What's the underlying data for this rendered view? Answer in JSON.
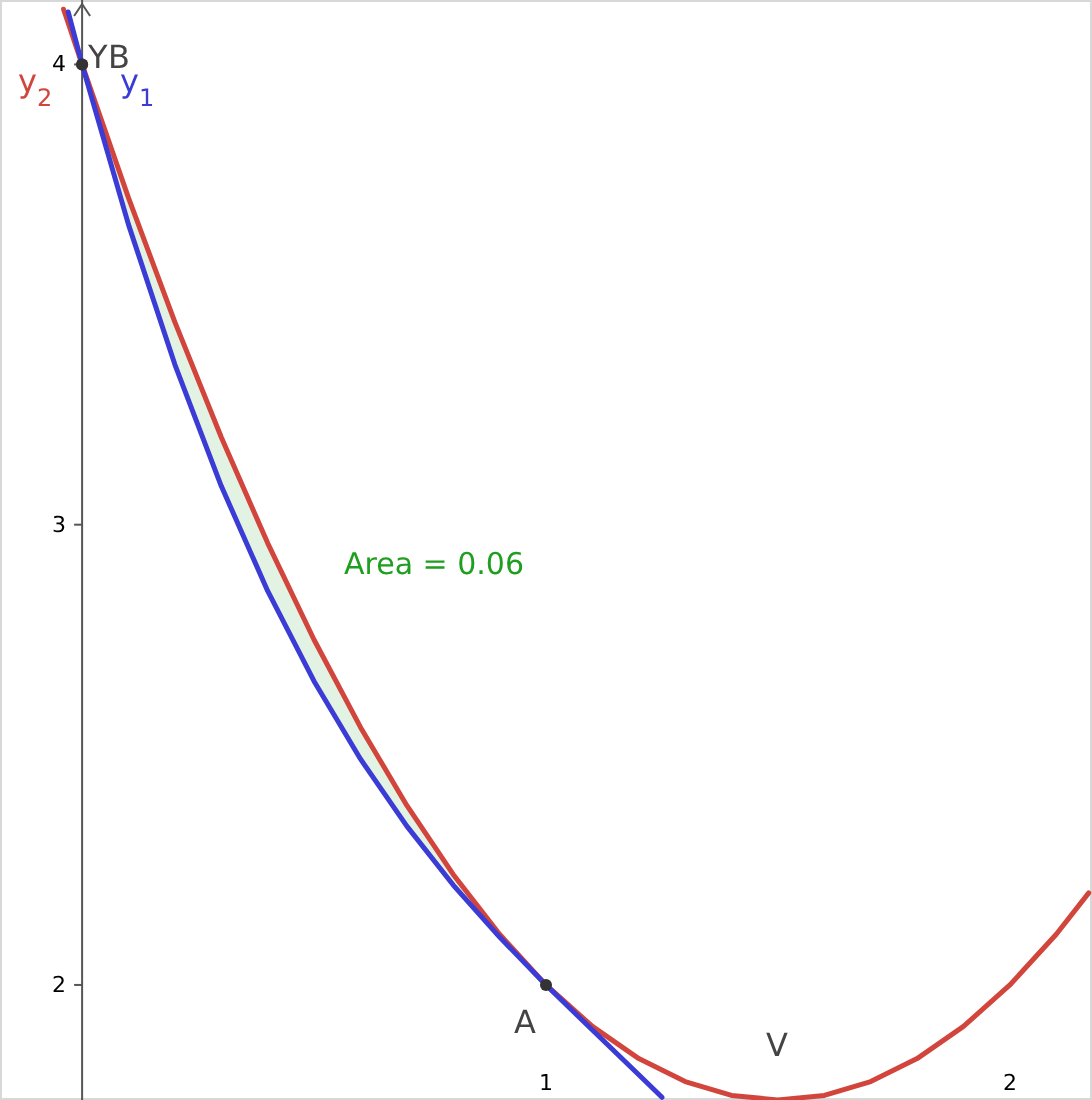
{
  "chart_data": {
    "type": "line",
    "xlim": [
      -0.177,
      2.177
    ],
    "ylim": [
      1.75,
      4.14
    ],
    "xticks": [
      1,
      2
    ],
    "yticks": [
      2,
      3,
      4
    ],
    "grid": false,
    "marker": "none",
    "line_style": "solid",
    "series": [
      {
        "name": "y$_{2}$",
        "color": "#d2453d",
        "x": [
          -0.04,
          0,
          0.1,
          0.2,
          0.3,
          0.4,
          0.5,
          0.6,
          0.7,
          0.8,
          0.9,
          1.0,
          1.1,
          1.2,
          1.3,
          1.4,
          1.5,
          1.6,
          1.7,
          1.8,
          1.9,
          2.0,
          2.1,
          2.17
        ],
        "values": [
          4.12,
          4,
          3.71,
          3.44,
          3.19,
          2.96,
          2.75,
          2.56,
          2.39,
          2.24,
          2.11,
          2,
          1.91,
          1.84,
          1.79,
          1.76,
          1.75,
          1.76,
          1.79,
          1.84,
          1.91,
          2,
          2.11,
          2.2
        ]
      },
      {
        "name": "y$_{1}$",
        "color": "#3b3bd6",
        "x": [
          -0.03,
          0,
          0.1,
          0.2,
          0.3,
          0.4,
          0.5,
          0.6,
          0.7,
          0.8,
          0.9,
          1.0,
          1.1,
          1.2,
          1.25
        ],
        "values": [
          4.114,
          4,
          3.652,
          3.348,
          3.084,
          2.856,
          2.66,
          2.491,
          2.345,
          2.217,
          2.104,
          2,
          1.902,
          1.805,
          1.756
        ],
        "lower": [
          null,
          4,
          3.652,
          3.348,
          3.084,
          2.856,
          2.66,
          2.491,
          2.345,
          2.217,
          2.104,
          2,
          null,
          null,
          null
        ],
        "upper": [
          null,
          4,
          3.71,
          3.44,
          3.19,
          2.96,
          2.75,
          2.56,
          2.39,
          2.24,
          2.11,
          2,
          null,
          null,
          null
        ]
      }
    ],
    "annotations": [
      "Area = 0.06",
      {
        "text": "Y",
        "x": 0,
        "y": 4
      },
      {
        "text": "B",
        "x": 0,
        "y": 4
      },
      {
        "text": "A",
        "x": 1,
        "y": 2
      },
      {
        "text": "V",
        "x": 1.5,
        "y": 1.75
      }
    ]
  }
}
